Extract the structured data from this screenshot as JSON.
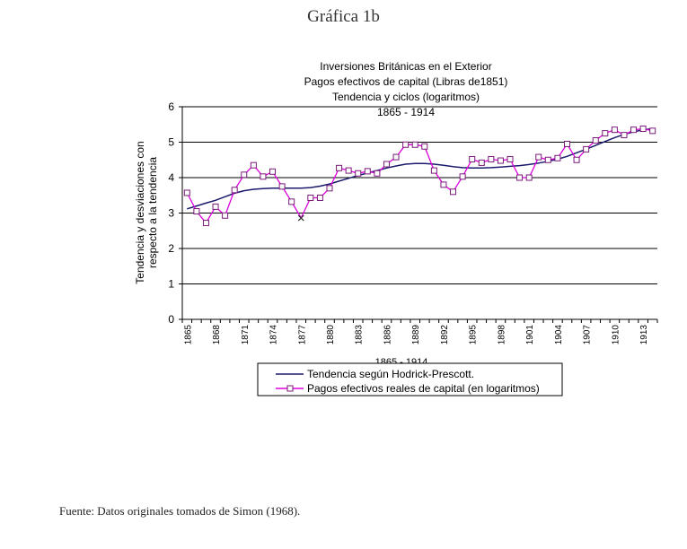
{
  "page": {
    "heading": "Gráfica 1b",
    "source_note": "Fuente: Datos originales tomados de Simon (1968)."
  },
  "chart_data": {
    "type": "line",
    "title_lines": [
      "Inversiones Británicas en el Exterior",
      "Pagos efectivos de capital (Libras de1851)",
      "Tendencia y ciclos (logaritmos)"
    ],
    "subtitle": "1865 - 1914",
    "xlabel": "1865 - 1914",
    "ylabel_lines": [
      "Tendencia y desviaciones con",
      "respecto a la tendencia"
    ],
    "ylim": [
      0,
      6
    ],
    "y_ticks": [
      0,
      1,
      2,
      3,
      4,
      5,
      6
    ],
    "x": [
      1865,
      1866,
      1867,
      1868,
      1869,
      1870,
      1871,
      1872,
      1873,
      1874,
      1875,
      1876,
      1877,
      1878,
      1879,
      1880,
      1881,
      1882,
      1883,
      1884,
      1885,
      1886,
      1887,
      1888,
      1889,
      1890,
      1891,
      1892,
      1893,
      1894,
      1895,
      1896,
      1897,
      1898,
      1899,
      1900,
      1901,
      1902,
      1903,
      1904,
      1905,
      1906,
      1907,
      1908,
      1909,
      1910,
      1911,
      1912,
      1913,
      1914
    ],
    "x_tick_labels": [
      "1865",
      "1868",
      "1871",
      "1874",
      "1877",
      "1880",
      "1883",
      "1886",
      "1889",
      "1892",
      "1895",
      "1898",
      "1901",
      "1904",
      "1907",
      "1910",
      "1913"
    ],
    "grid": true,
    "legend_position": "bottom",
    "series": [
      {
        "name": "Tendencia según Hodrick-Prescott.",
        "color": "#1a1a6e",
        "marker": "none",
        "values": [
          3.12,
          3.2,
          3.28,
          3.36,
          3.46,
          3.56,
          3.63,
          3.67,
          3.69,
          3.7,
          3.7,
          3.7,
          3.7,
          3.72,
          3.76,
          3.82,
          3.9,
          3.98,
          4.06,
          4.13,
          4.2,
          4.27,
          4.33,
          4.38,
          4.4,
          4.4,
          4.38,
          4.35,
          4.31,
          4.28,
          4.27,
          4.27,
          4.28,
          4.3,
          4.32,
          4.34,
          4.37,
          4.41,
          4.46,
          4.52,
          4.6,
          4.7,
          4.8,
          4.91,
          5.02,
          5.13,
          5.22,
          5.29,
          5.35,
          5.38
        ]
      },
      {
        "name": "Pagos efectivos reales de capital (en logaritmos)",
        "color": "#dd00dd",
        "marker": "square",
        "values": [
          3.57,
          3.05,
          2.72,
          3.18,
          2.93,
          3.65,
          4.08,
          4.35,
          4.03,
          4.17,
          3.75,
          3.32,
          2.86,
          3.43,
          3.43,
          3.7,
          4.27,
          4.2,
          4.12,
          4.18,
          4.12,
          4.38,
          4.58,
          4.93,
          4.93,
          4.88,
          4.2,
          3.8,
          3.6,
          4.03,
          4.52,
          4.42,
          4.52,
          4.48,
          4.52,
          4.0,
          4.0,
          4.58,
          4.5,
          4.55,
          4.95,
          4.5,
          4.8,
          5.05,
          5.25,
          5.35,
          5.2,
          5.35,
          5.38,
          5.32
        ],
        "anomaly_index": 12
      }
    ]
  }
}
